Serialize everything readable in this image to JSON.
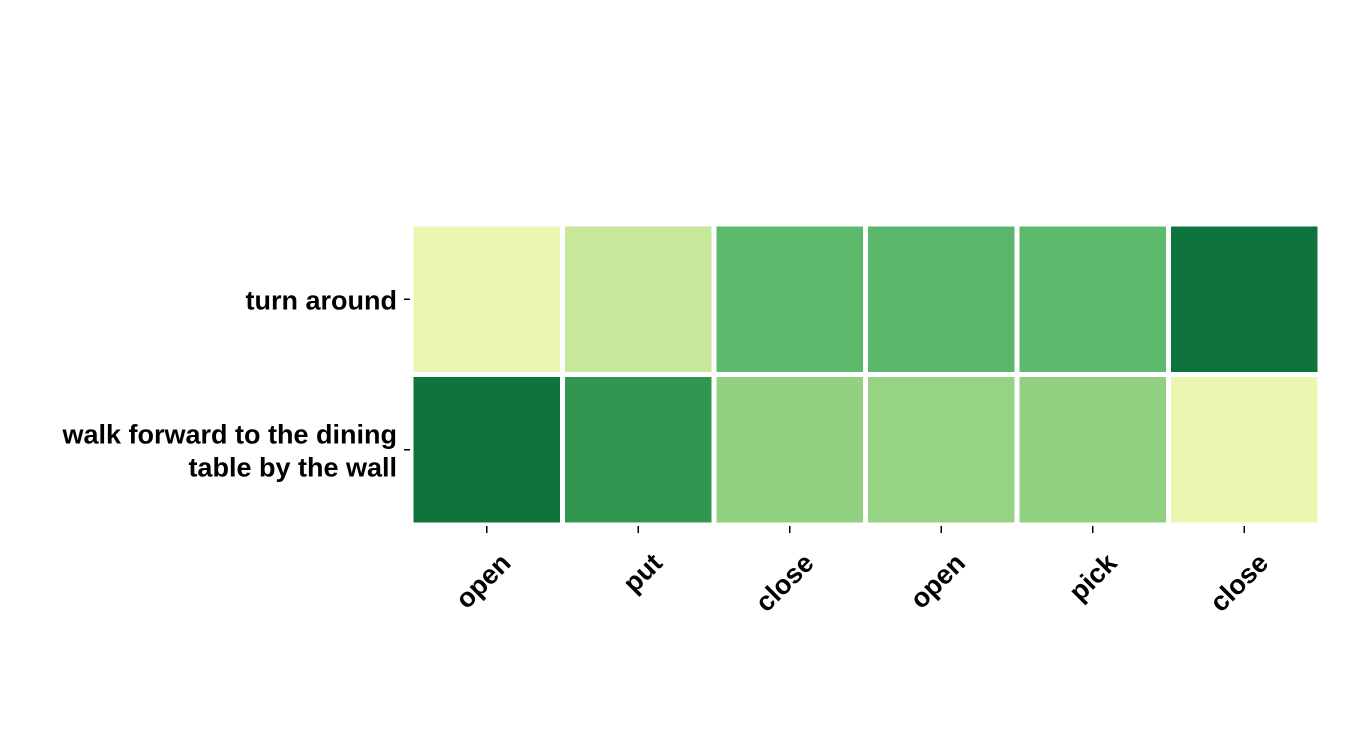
{
  "chart_data": {
    "type": "heatmap",
    "title": "",
    "xlabel": "",
    "ylabel": "",
    "rows": [
      "turn around",
      "walk forward to the dining table by the wall"
    ],
    "row_label_lines": [
      [
        "turn around"
      ],
      [
        "walk forward to the dining",
        "table by the wall"
      ]
    ],
    "columns": [
      "open",
      "put",
      "close",
      "open",
      "pick",
      "close"
    ],
    "values": [
      [
        0.05,
        0.22,
        0.58,
        0.6,
        0.58,
        0.95
      ],
      [
        0.95,
        0.8,
        0.42,
        0.4,
        0.43,
        0.05
      ]
    ],
    "value_range": [
      0,
      1
    ],
    "colormap": "YlGn",
    "colors": [
      [
        "#ebf7b1",
        "#c7e89b",
        "#5db96b",
        "#59b66a",
        "#5db96b",
        "#0e733c"
      ],
      [
        "#0e733c",
        "#31964f",
        "#93d182",
        "#97d384",
        "#91d081",
        "#ebf7b1"
      ]
    ],
    "colorbar": false,
    "grid": false,
    "legend": "none"
  }
}
